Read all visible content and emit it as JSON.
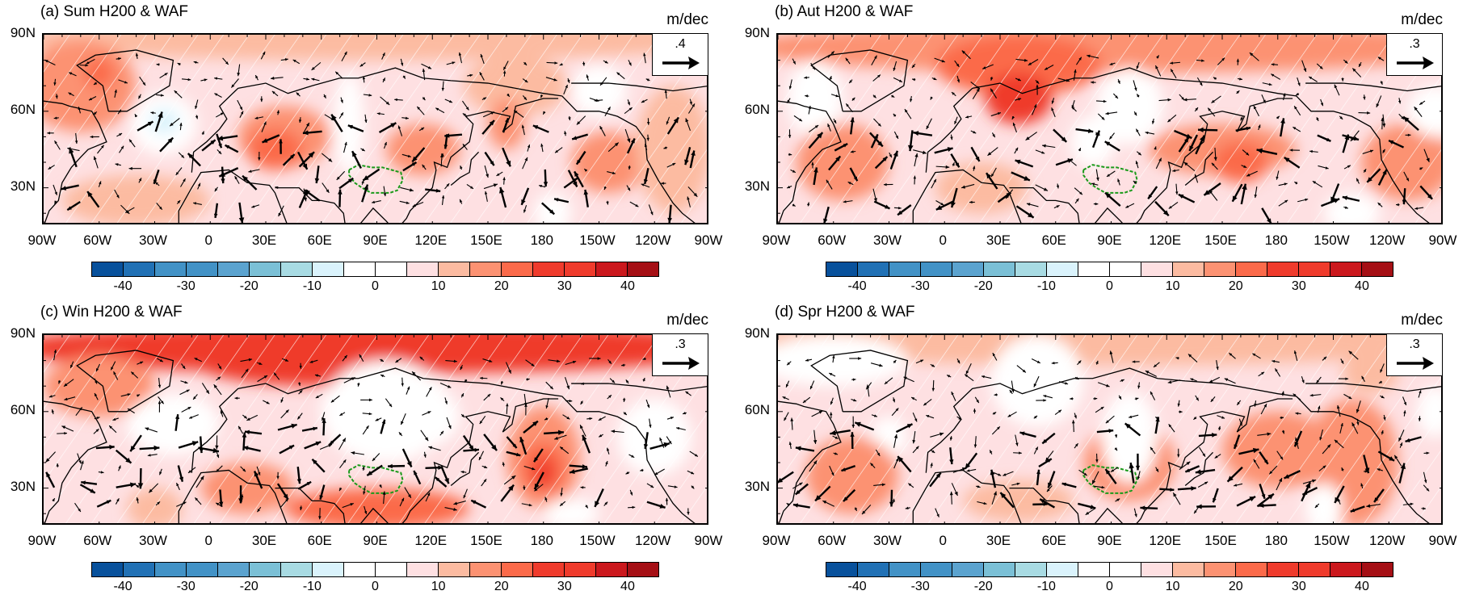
{
  "panels": [
    {
      "id": "a",
      "title": "(a) Sum H200 & WAF",
      "unit": "m/dec",
      "ref_vector": ".4"
    },
    {
      "id": "b",
      "title": "(b) Aut H200 & WAF",
      "unit": "m/dec",
      "ref_vector": ".3"
    },
    {
      "id": "c",
      "title": "(c) Win H200 & WAF",
      "unit": "m/dec",
      "ref_vector": ".3"
    },
    {
      "id": "d",
      "title": "(d) Spr H200 & WAF",
      "unit": "m/dec",
      "ref_vector": ".3"
    }
  ],
  "x_ticks": [
    "90W",
    "60W",
    "30W",
    "0",
    "30E",
    "60E",
    "90E",
    "120E",
    "150E",
    "180",
    "150W",
    "120W",
    "90W"
  ],
  "y_ticks": [
    "90N",
    "60N",
    "30N"
  ],
  "colorbar": {
    "labels": [
      "-40",
      "-30",
      "-20",
      "-10",
      "0",
      "10",
      "20",
      "30",
      "40"
    ],
    "colors": [
      "#08519c",
      "#2171b5",
      "#4292c6",
      "#4292c6",
      "#5ba3cf",
      "#7bc0d6",
      "#a8dbe3",
      "#daf3fc",
      "#ffffff",
      "#ffffff",
      "#fee0e2",
      "#fcbba1",
      "#fc9272",
      "#fb6a4a",
      "#ef3b2c",
      "#ef3b2c",
      "#cb181d",
      "#a50f15"
    ]
  },
  "colors": {
    "plateau_contour": "#1a9a1a",
    "hatching": "#ffffff"
  }
}
